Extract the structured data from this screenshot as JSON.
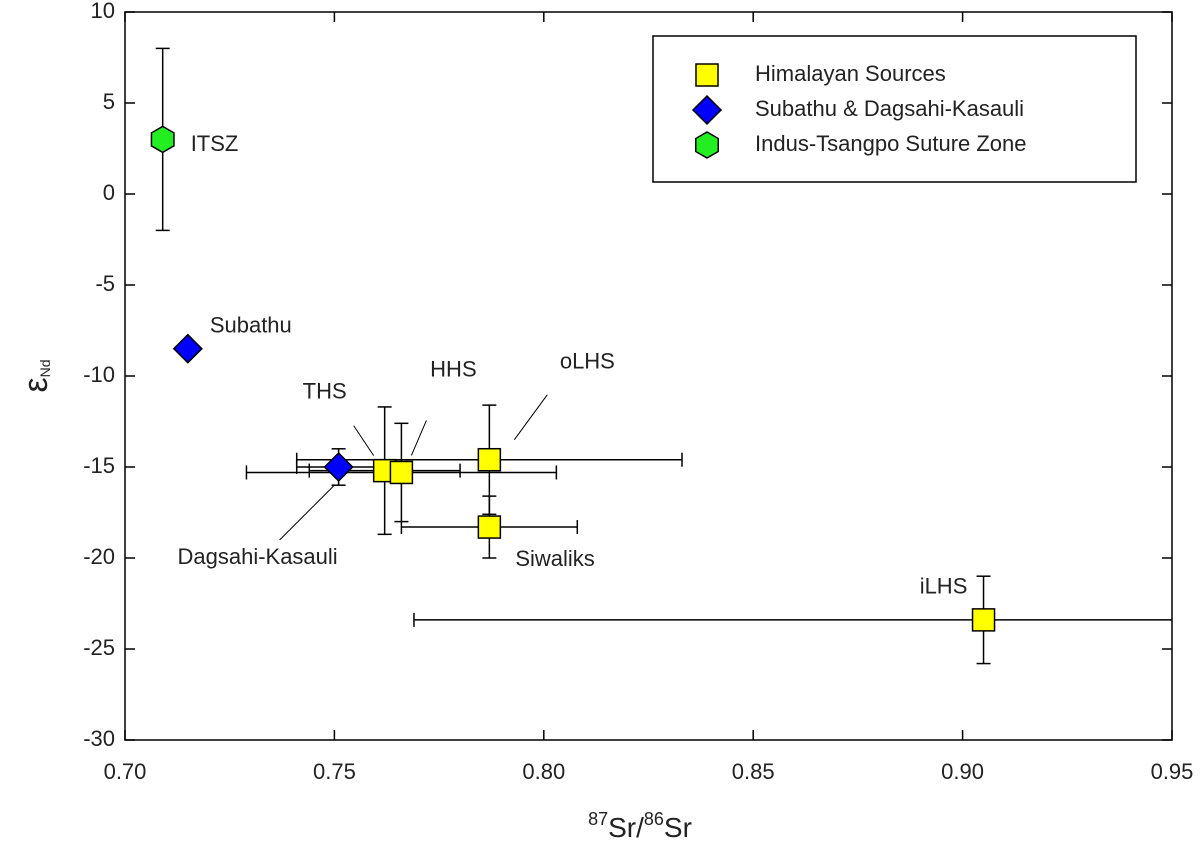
{
  "chart_data": {
    "type": "scatter",
    "xlabel": {
      "sup1": "87",
      "base1": "Sr/",
      "sup2": "86",
      "base2": "Sr"
    },
    "ylabel": {
      "base": "ε",
      "sub": "Nd"
    },
    "xlim": [
      0.7,
      0.95
    ],
    "ylim": [
      -30,
      10
    ],
    "xticks": [
      {
        "value": 0.7,
        "label": "0.70"
      },
      {
        "value": 0.75,
        "label": "0.75"
      },
      {
        "value": 0.8,
        "label": "0.80"
      },
      {
        "value": 0.85,
        "label": "0.85"
      },
      {
        "value": 0.9,
        "label": "0.90"
      },
      {
        "value": 0.95,
        "label": "0.95"
      }
    ],
    "yticks": [
      10,
      5,
      0,
      -5,
      -10,
      -15,
      -20,
      -25,
      -30
    ],
    "legend": "upper right",
    "series": [
      {
        "name": "Himalayan Sources",
        "color": "#ffff00",
        "marker": "square",
        "x": [
          0.762,
          0.766,
          0.787,
          0.787,
          0.905
        ],
        "values": [
          -15.2,
          -15.3,
          -14.6,
          -18.3,
          -23.4
        ],
        "xerr": [
          0.018,
          0.037,
          0.046,
          0.021,
          0.136
        ],
        "yerr": [
          3.5,
          2.7,
          3.0,
          1.7,
          2.4
        ],
        "point_labels": [
          "THS",
          "HHS",
          "oLHS",
          "Siwaliks",
          "iLHS"
        ]
      },
      {
        "name": "Subathu & Dagsahi-Kasauli",
        "color": "#0000ff",
        "marker": "diamond",
        "x": [
          0.715,
          0.751
        ],
        "values": [
          -8.5,
          -15.0
        ],
        "xerr": [
          null,
          0.01
        ],
        "yerr": [
          null,
          1.0
        ],
        "point_labels": [
          "Subathu",
          "Dagsahi-Kasauli"
        ]
      },
      {
        "name": "Indus-Tsangpo Suture Zone",
        "color": "#22ee22",
        "marker": "hexagon",
        "x": [
          0.709
        ],
        "values": [
          3.0
        ],
        "xerr": [
          null
        ],
        "yerr": [
          5.0
        ],
        "point_labels": [
          "ITSZ"
        ]
      }
    ]
  }
}
